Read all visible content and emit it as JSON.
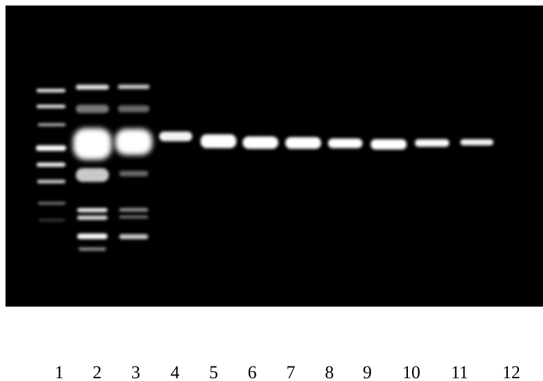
{
  "lane_labels": [
    "1",
    "2",
    "3",
    "4",
    "5",
    "6",
    "7",
    "8",
    "9",
    "10",
    "11",
    "12"
  ]
}
